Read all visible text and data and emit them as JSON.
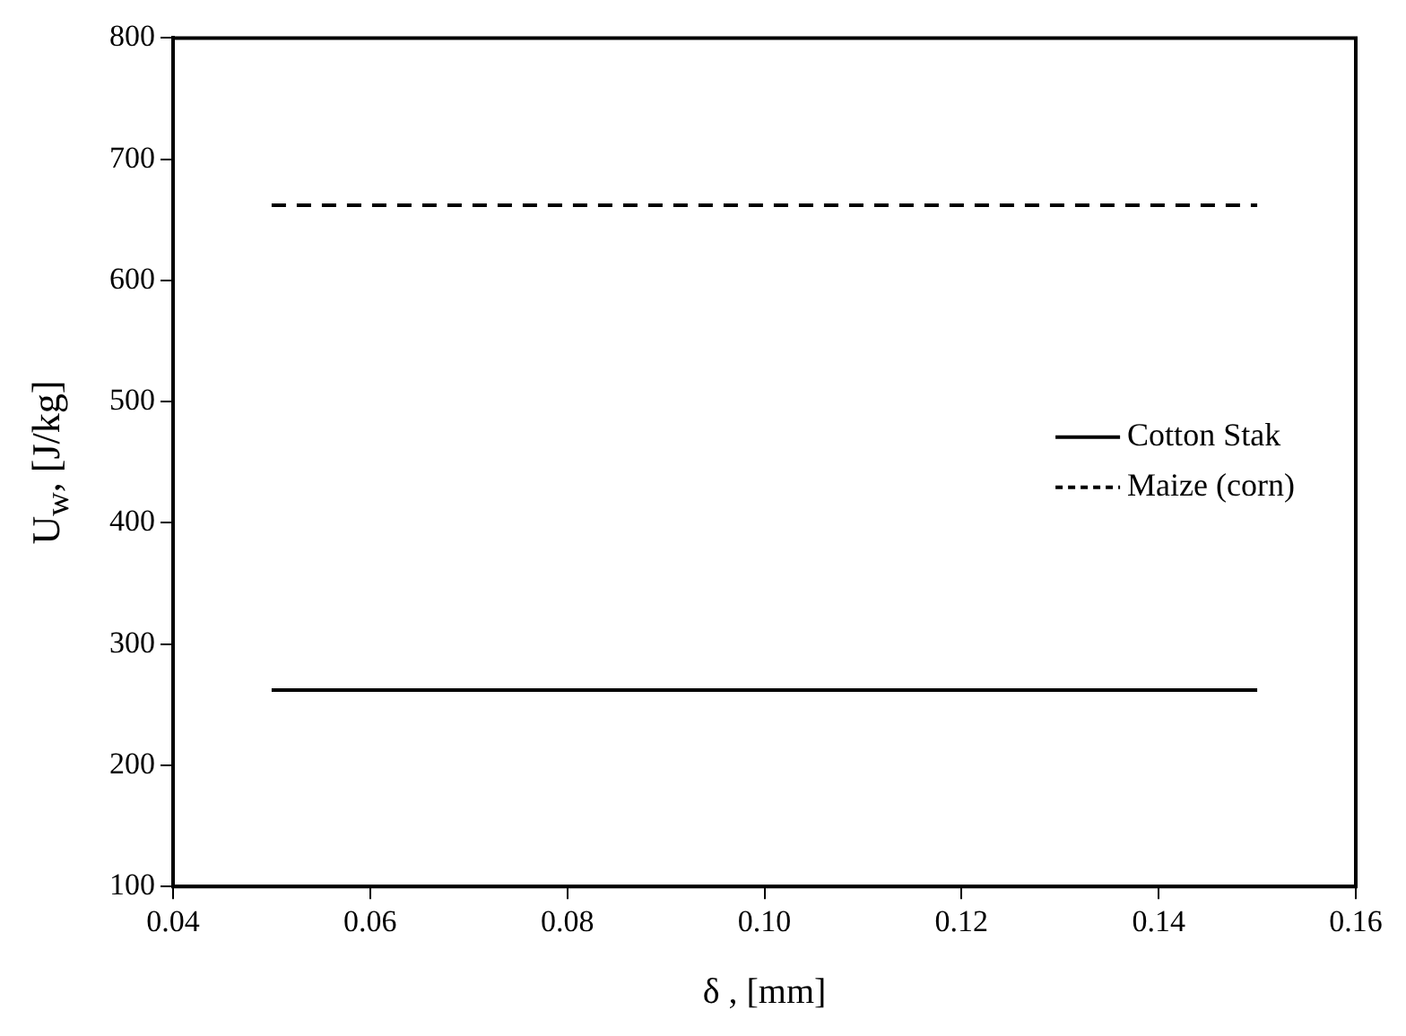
{
  "chart_data": {
    "type": "line",
    "xlabel": "δ , [mm]",
    "ylabel": "U$_{w}$, [J/kg]",
    "x": [
      0.05,
      0.15
    ],
    "series": [
      {
        "name": "Cotton Stak",
        "color": "#000000",
        "values": [
          262,
          262
        ],
        "line_style": "solid"
      },
      {
        "name": "Maize (corn)",
        "color": "#000000",
        "values": [
          662,
          662
        ],
        "line_style": "dashed"
      }
    ],
    "xlim": [
      0.04,
      0.16
    ],
    "xticks": [
      {
        "value": 0.04,
        "label": "0.04"
      },
      {
        "value": 0.06,
        "label": "0.06"
      },
      {
        "value": 0.08,
        "label": "0.08"
      },
      {
        "value": 0.1,
        "label": "0.10"
      },
      {
        "value": 0.12,
        "label": "0.12"
      },
      {
        "value": 0.14,
        "label": "0.14"
      },
      {
        "value": 0.16,
        "label": "0.16"
      }
    ],
    "ylim": [
      100,
      800
    ],
    "yticks": [
      100,
      200,
      300,
      400,
      500,
      600,
      700,
      800
    ],
    "grid": false,
    "legend": "right",
    "marker": "none"
  }
}
